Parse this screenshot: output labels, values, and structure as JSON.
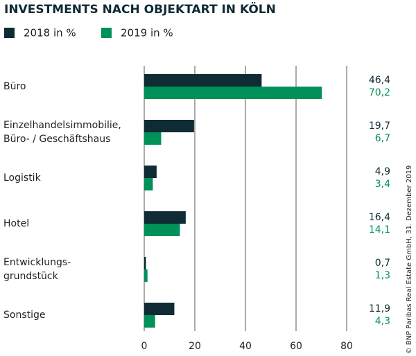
{
  "chart_data": {
    "type": "hbar",
    "title": "INVESTMENTS NACH OBJEKTART IN KÖLN",
    "source": "© BNP Paribas Real Estate GmbH, 31. Dezember 2019",
    "categories": [
      [
        "Büro"
      ],
      [
        "Einzelhandelsimmobilie,",
        "Büro- / Geschäftshaus"
      ],
      [
        "Logistik"
      ],
      [
        "Hotel"
      ],
      [
        "Entwicklungs-",
        "grundstück"
      ],
      [
        "Sonstige"
      ]
    ],
    "series": [
      {
        "name": "2018 in %",
        "color": "#0f2b33",
        "values": [
          46.4,
          19.7,
          4.9,
          16.4,
          0.7,
          11.9
        ],
        "value_labels": [
          "46,4",
          "19,7",
          "4,9",
          "16,4",
          "0,7",
          "11,9"
        ]
      },
      {
        "name": "2019 in %",
        "color": "#00915a",
        "values": [
          70.2,
          6.7,
          3.4,
          14.1,
          1.3,
          4.3
        ],
        "value_labels": [
          "70,2",
          "6,7",
          "3,4",
          "14,1",
          "1,3",
          "4,3"
        ]
      }
    ],
    "xlim": [
      0,
      80
    ],
    "xticks": [
      0,
      20,
      40,
      60,
      80
    ],
    "grid": true
  }
}
